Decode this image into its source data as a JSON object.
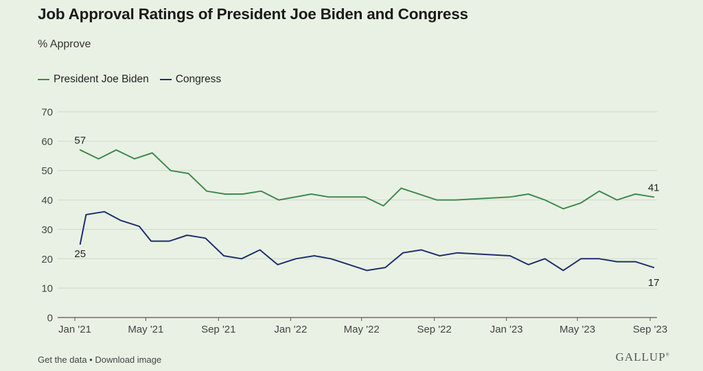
{
  "title": "Job Approval Ratings of President Joe Biden and Congress",
  "subtitle": "% Approve",
  "footer": {
    "get_data": "Get the data",
    "separator": " • ",
    "download": "Download image",
    "brand": "GALLUP"
  },
  "chart_data": {
    "type": "line",
    "ylim": [
      0,
      70
    ],
    "yticks": [
      0,
      10,
      20,
      30,
      40,
      50,
      60,
      70
    ],
    "xlim": [
      "2021-01",
      "2023-09"
    ],
    "xticks": [
      {
        "date": "2021-01",
        "label": "Jan '21"
      },
      {
        "date": "2021-05",
        "label": "May '21"
      },
      {
        "date": "2021-09",
        "label": "Sep '21"
      },
      {
        "date": "2022-01",
        "label": "Jan '22"
      },
      {
        "date": "2022-05",
        "label": "May '22"
      },
      {
        "date": "2022-09",
        "label": "Sep '22"
      },
      {
        "date": "2023-01",
        "label": "Jan '23"
      },
      {
        "date": "2023-05",
        "label": "May '23"
      },
      {
        "date": "2023-09",
        "label": "Sep '23"
      }
    ],
    "grid": true,
    "legend": "top-left",
    "series": [
      {
        "name": "President Joe Biden",
        "color": "#3e8a4c",
        "points": [
          [
            "2021-01-10",
            57
          ],
          [
            "2021-02-10",
            54
          ],
          [
            "2021-03-12",
            57
          ],
          [
            "2021-04-12",
            54
          ],
          [
            "2021-05-12",
            56
          ],
          [
            "2021-06-12",
            50
          ],
          [
            "2021-07-12",
            49
          ],
          [
            "2021-08-12",
            43
          ],
          [
            "2021-09-12",
            42
          ],
          [
            "2021-10-12",
            42
          ],
          [
            "2021-11-12",
            43
          ],
          [
            "2021-12-12",
            40
          ],
          [
            "2022-02-05",
            42
          ],
          [
            "2022-03-07",
            41
          ],
          [
            "2022-04-07",
            41
          ],
          [
            "2022-05-07",
            41
          ],
          [
            "2022-06-07",
            38
          ],
          [
            "2022-07-07",
            44
          ],
          [
            "2022-09-05",
            40
          ],
          [
            "2022-10-07",
            40
          ],
          [
            "2023-01-07",
            41
          ],
          [
            "2023-02-07",
            42
          ],
          [
            "2023-03-07",
            40
          ],
          [
            "2023-04-07",
            37
          ],
          [
            "2023-05-07",
            39
          ],
          [
            "2023-06-07",
            43
          ],
          [
            "2023-07-07",
            40
          ],
          [
            "2023-08-07",
            42
          ],
          [
            "2023-09-07",
            41
          ]
        ],
        "labels": [
          {
            "date": "2021-01-10",
            "value": 57,
            "text": "57"
          },
          {
            "date": "2023-09-07",
            "value": 41,
            "text": "41"
          }
        ]
      },
      {
        "name": "Congress",
        "color": "#1d2e6e",
        "points": [
          [
            "2021-01-10",
            25
          ],
          [
            "2021-01-20",
            35
          ],
          [
            "2021-02-20",
            36
          ],
          [
            "2021-03-20",
            33
          ],
          [
            "2021-04-20",
            31
          ],
          [
            "2021-05-10",
            26
          ],
          [
            "2021-06-10",
            26
          ],
          [
            "2021-07-10",
            28
          ],
          [
            "2021-08-10",
            27
          ],
          [
            "2021-09-10",
            21
          ],
          [
            "2021-10-10",
            20
          ],
          [
            "2021-11-10",
            23
          ],
          [
            "2021-12-10",
            18
          ],
          [
            "2022-01-10",
            20
          ],
          [
            "2022-02-10",
            21
          ],
          [
            "2022-03-10",
            20
          ],
          [
            "2022-04-10",
            18
          ],
          [
            "2022-05-10",
            16
          ],
          [
            "2022-06-10",
            17
          ],
          [
            "2022-07-10",
            22
          ],
          [
            "2022-08-10",
            23
          ],
          [
            "2022-09-10",
            21
          ],
          [
            "2022-10-10",
            22
          ],
          [
            "2023-01-07",
            21
          ],
          [
            "2023-02-07",
            18
          ],
          [
            "2023-03-07",
            20
          ],
          [
            "2023-04-07",
            16
          ],
          [
            "2023-05-07",
            20
          ],
          [
            "2023-06-07",
            20
          ],
          [
            "2023-07-07",
            19
          ],
          [
            "2023-08-07",
            19
          ],
          [
            "2023-09-07",
            17
          ]
        ],
        "labels": [
          {
            "date": "2021-01-10",
            "value": 25,
            "text": "25"
          },
          {
            "date": "2023-09-07",
            "value": 17,
            "text": "17"
          }
        ]
      }
    ]
  }
}
